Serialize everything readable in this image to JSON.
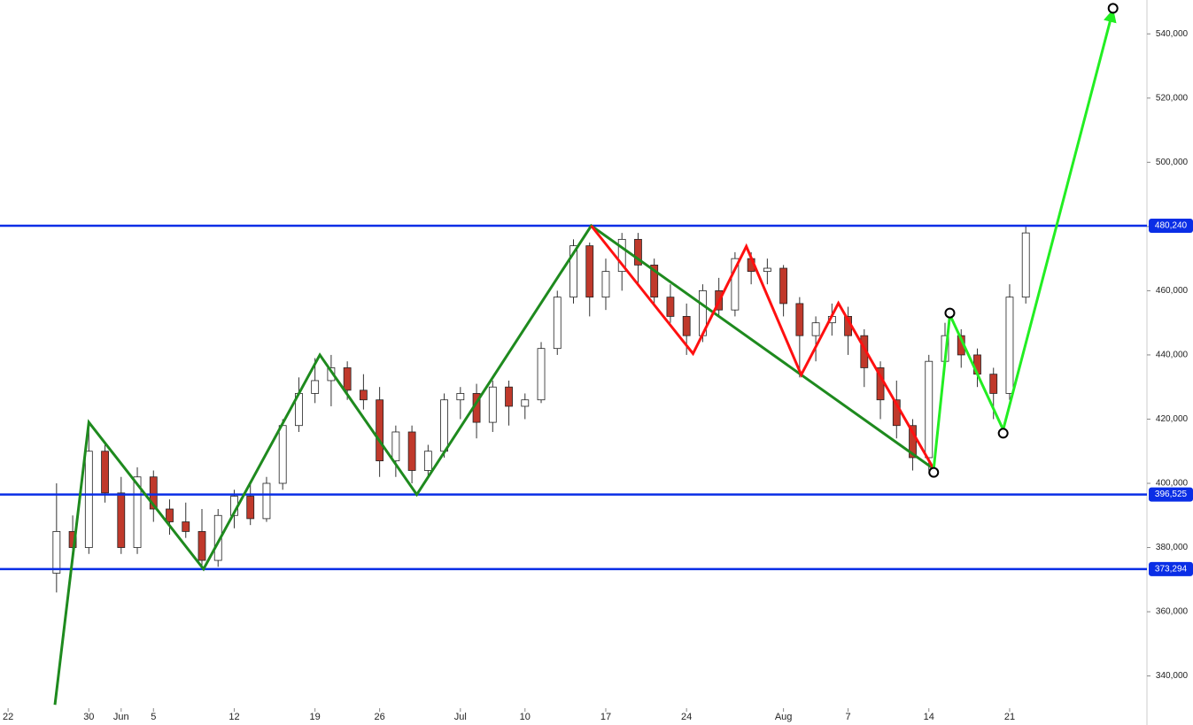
{
  "chart_data": {
    "type": "candlestick",
    "xlim": [
      -0.5,
      70.5
    ],
    "ylim": [
      325000,
      550000
    ],
    "xticks": [
      {
        "value": 0,
        "label": "22"
      },
      {
        "value": 5,
        "label": "30"
      },
      {
        "value": 7,
        "label": "Jun"
      },
      {
        "value": 9,
        "label": "5"
      },
      {
        "value": 14,
        "label": "12"
      },
      {
        "value": 19,
        "label": "19"
      },
      {
        "value": 23,
        "label": "26"
      },
      {
        "value": 28,
        "label": "Jul"
      },
      {
        "value": 32,
        "label": "10"
      },
      {
        "value": 37,
        "label": "17"
      },
      {
        "value": 42,
        "label": "24"
      },
      {
        "value": 48,
        "label": "Aug"
      },
      {
        "value": 52,
        "label": "7"
      },
      {
        "value": 57,
        "label": "14"
      },
      {
        "value": 62,
        "label": "21"
      }
    ],
    "yticks": [
      {
        "value": 340000,
        "label": "340,000"
      },
      {
        "value": 360000,
        "label": "360,000"
      },
      {
        "value": 380000,
        "label": "380,000"
      },
      {
        "value": 400000,
        "label": "400,000"
      },
      {
        "value": 420000,
        "label": "420,000"
      },
      {
        "value": 440000,
        "label": "440,000"
      },
      {
        "value": 460000,
        "label": "460,000"
      },
      {
        "value": 480000,
        "label": "480,000"
      },
      {
        "value": 500000,
        "label": "500,000"
      },
      {
        "value": 520000,
        "label": "520,000"
      },
      {
        "value": 540000,
        "label": "540,000"
      }
    ],
    "levels": [
      {
        "value": 480240,
        "label": "480,240"
      },
      {
        "value": 396525,
        "label": "396,525"
      },
      {
        "value": 373294,
        "label": "373,294"
      }
    ],
    "level_color": "#0a2ee6",
    "up_color": "#ffffff",
    "down_color": "#c0392b",
    "candles": {
      "x": [
        3,
        4,
        5,
        6,
        7,
        8,
        9,
        10,
        11,
        12,
        13,
        14,
        15,
        16,
        17,
        18,
        19,
        20,
        21,
        22,
        23,
        24,
        25,
        26,
        27,
        28,
        29,
        30,
        31,
        32,
        33,
        34,
        35,
        36,
        37,
        38,
        39,
        40,
        41,
        42,
        43,
        44,
        45,
        46,
        47,
        48,
        49,
        50,
        51,
        52,
        53,
        54,
        55,
        56,
        57,
        58,
        59,
        60,
        61,
        62,
        63
      ],
      "open": [
        372000,
        385000,
        380000,
        410000,
        397000,
        380000,
        402000,
        392000,
        388000,
        385000,
        376000,
        390000,
        396000,
        389000,
        400000,
        418000,
        428000,
        432000,
        436000,
        429000,
        426000,
        407000,
        416000,
        404000,
        410000,
        426000,
        428000,
        419000,
        430000,
        424000,
        426000,
        442000,
        458000,
        474000,
        458000,
        466000,
        476000,
        468000,
        458000,
        452000,
        446000,
        460000,
        454000,
        470000,
        466000,
        467000,
        456000,
        446000,
        450000,
        452000,
        446000,
        436000,
        426000,
        418000,
        408000,
        438000,
        446000,
        440000,
        434000,
        428000,
        458000
      ],
      "high": [
        400000,
        390000,
        418000,
        412000,
        402000,
        405000,
        404000,
        395000,
        394000,
        392000,
        392000,
        398000,
        400000,
        402000,
        420000,
        433000,
        439000,
        440000,
        438000,
        434000,
        430000,
        418000,
        418000,
        412000,
        428000,
        430000,
        431000,
        432000,
        432000,
        428000,
        444000,
        460000,
        476000,
        475000,
        470000,
        478000,
        478000,
        470000,
        462000,
        456000,
        462000,
        464000,
        472000,
        472000,
        470000,
        468000,
        458000,
        452000,
        456000,
        455000,
        448000,
        438000,
        432000,
        420000,
        440000,
        450000,
        448000,
        442000,
        436000,
        462000,
        480000
      ],
      "low": [
        366000,
        376000,
        378000,
        394000,
        378000,
        378000,
        388000,
        384000,
        383000,
        374000,
        374000,
        386000,
        387000,
        388000,
        398000,
        416000,
        425000,
        424000,
        426000,
        423000,
        402000,
        402000,
        400000,
        402000,
        408000,
        420000,
        414000,
        416000,
        418000,
        420000,
        425000,
        440000,
        456000,
        452000,
        454000,
        460000,
        462000,
        456000,
        450000,
        440000,
        444000,
        452000,
        452000,
        462000,
        462000,
        452000,
        433000,
        438000,
        446000,
        440000,
        430000,
        420000,
        414000,
        404000,
        404000,
        436000,
        436000,
        430000,
        420000,
        426000,
        456000
      ],
      "close": [
        385000,
        380000,
        410000,
        397000,
        380000,
        402000,
        392000,
        388000,
        385000,
        376000,
        390000,
        396000,
        389000,
        400000,
        418000,
        428000,
        432000,
        436000,
        429000,
        426000,
        407000,
        416000,
        404000,
        410000,
        426000,
        428000,
        419000,
        430000,
        424000,
        426000,
        442000,
        458000,
        474000,
        458000,
        466000,
        476000,
        468000,
        458000,
        452000,
        446000,
        460000,
        454000,
        470000,
        466000,
        467000,
        456000,
        446000,
        450000,
        452000,
        446000,
        436000,
        426000,
        418000,
        408000,
        438000,
        446000,
        440000,
        434000,
        428000,
        458000,
        478000
      ]
    },
    "zigzags": [
      {
        "color": "#1e8a1e",
        "x": [
          2.9,
          5.0,
          12.1,
          19.3,
          25.3,
          36.1,
          57.3
        ],
        "values": [
          331000,
          419000,
          373300,
          440000,
          396500,
          480240,
          404500
        ]
      },
      {
        "color": "#ff1010",
        "x": [
          36.1,
          42.4,
          45.7,
          49.1,
          51.4,
          57.3
        ],
        "values": [
          480240,
          440400,
          473800,
          433800,
          456100,
          404500
        ]
      },
      {
        "color": "#22ee22",
        "x": [
          57.3,
          58.3,
          61.6,
          68.4
        ],
        "values": [
          404500,
          452500,
          416700,
          547400
        ],
        "markers": true,
        "arrow": true
      }
    ]
  }
}
